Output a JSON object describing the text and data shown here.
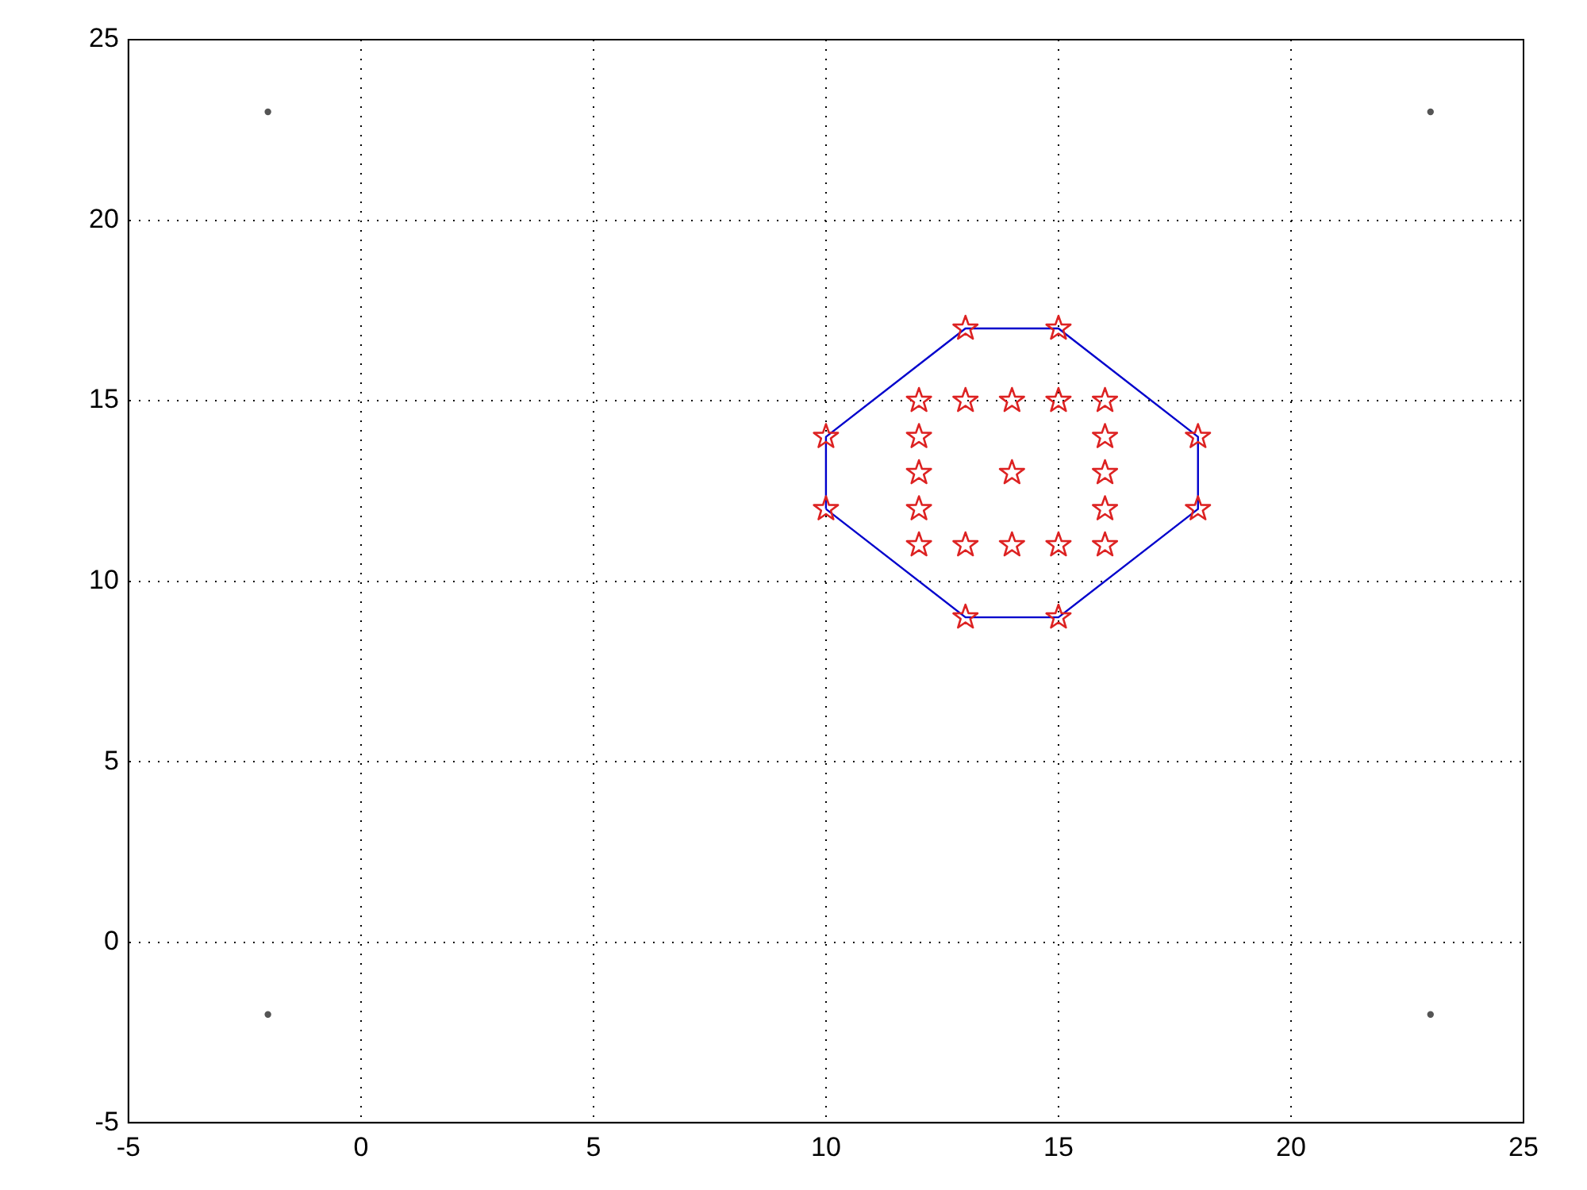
{
  "chart_data": {
    "type": "scatter",
    "xlim": [
      -5,
      25
    ],
    "ylim": [
      -5,
      25
    ],
    "xticks": [
      -5,
      0,
      5,
      10,
      15,
      20,
      25
    ],
    "yticks": [
      -5,
      0,
      5,
      10,
      15,
      20,
      25
    ],
    "grid": true,
    "legend": false,
    "series": [
      {
        "type": "scatter",
        "color": "#555555",
        "marker": "circle",
        "x": [
          -2,
          23,
          -2,
          23
        ],
        "values": [
          23,
          23,
          -2,
          -2
        ]
      },
      {
        "type": "line",
        "color": "#0000cc",
        "marker": "none",
        "line_style": "solid",
        "x": [
          10,
          10,
          13,
          15,
          18,
          18
        ],
        "values": [
          12,
          14,
          17,
          17,
          14,
          12
        ]
      },
      {
        "type": "line",
        "color": "#0000cc",
        "marker": "none",
        "line_style": "solid",
        "x": [
          10,
          13,
          15,
          18
        ],
        "values": [
          12,
          9,
          9,
          12
        ]
      },
      {
        "type": "scatter",
        "color": "#dd2222",
        "marker": "star",
        "x": [
          13,
          15,
          18,
          18,
          15,
          13,
          10,
          10,
          12,
          13,
          14,
          15,
          16,
          12,
          16,
          12,
          14,
          16,
          12,
          16,
          12,
          13,
          14,
          15,
          16
        ],
        "values": [
          17,
          17,
          14,
          12,
          9,
          9,
          12,
          14,
          15,
          15,
          15,
          15,
          15,
          14,
          14,
          13,
          13,
          13,
          12,
          12,
          11,
          11,
          11,
          11,
          11
        ]
      }
    ]
  }
}
